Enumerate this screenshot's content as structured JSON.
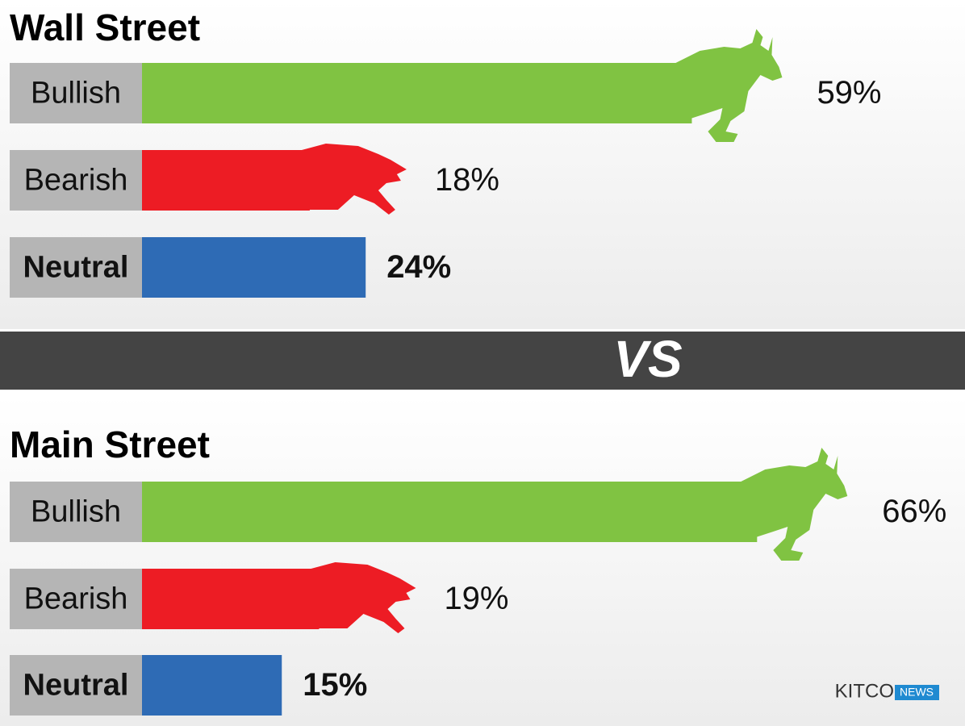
{
  "chart_data": [
    {
      "type": "bar",
      "orientation": "horizontal",
      "title": "Wall Street",
      "categories": [
        "Bullish",
        "Bearish",
        "Neutral"
      ],
      "values": [
        59,
        18,
        24
      ],
      "value_labels": [
        "59%",
        "18%",
        "24%"
      ],
      "colors": [
        "#80c342",
        "#ed1c24",
        "#2e6bb5"
      ]
    },
    {
      "type": "bar",
      "orientation": "horizontal",
      "title": "Main Street",
      "categories": [
        "Bullish",
        "Bearish",
        "Neutral"
      ],
      "values": [
        66,
        19,
        15
      ],
      "value_labels": [
        "66%",
        "19%",
        "15%"
      ],
      "colors": [
        "#80c342",
        "#ed1c24",
        "#2e6bb5"
      ]
    }
  ],
  "divider": "VS",
  "logo": {
    "brand": "KITCO",
    "tag": "NEWS"
  }
}
